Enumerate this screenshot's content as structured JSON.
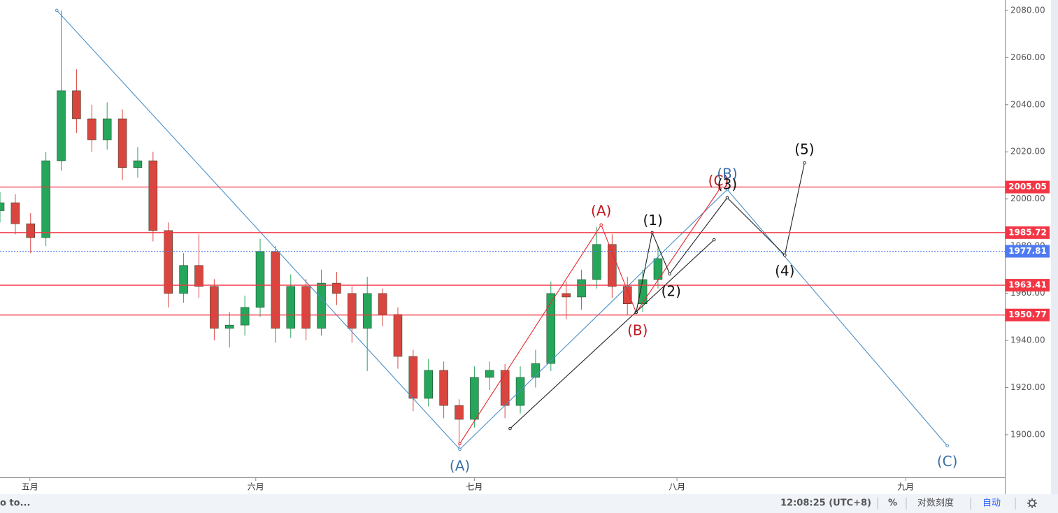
{
  "chart_data": {
    "type": "candlestick",
    "xlim": [
      -4.1,
      133.8
    ],
    "ylim": [
      1881.9,
      2084.4
    ],
    "xticks": [
      {
        "value": 0,
        "label": "五月"
      },
      {
        "value": 31,
        "label": "六月"
      },
      {
        "value": 61,
        "label": "七月"
      },
      {
        "value": 88.8,
        "label": "八月"
      },
      {
        "value": 120.2,
        "label": "九月"
      }
    ],
    "yticks": [
      {
        "value": 1900,
        "label": "1900.00"
      },
      {
        "value": 1920,
        "label": "1920.00"
      },
      {
        "value": 1940,
        "label": "1940.00"
      },
      {
        "value": 1960,
        "label": "1960.00"
      },
      {
        "value": 1980,
        "label": "1980.00"
      },
      {
        "value": 2000,
        "label": "2000.00"
      },
      {
        "value": 2020,
        "label": "2020.00"
      },
      {
        "value": 2040,
        "label": "2040.00"
      },
      {
        "value": 2060,
        "label": "2060.00"
      },
      {
        "value": 2080,
        "label": "2080.00"
      }
    ],
    "up_color": "#26a65b",
    "down_color": "#d9453f",
    "candles": {
      "x": [
        -4.1,
        -2,
        0.1,
        2.2,
        4.3,
        6.4,
        8.5,
        10.6,
        12.7,
        14.8,
        16.9,
        19,
        21.1,
        23.2,
        25.3,
        27.4,
        29.5,
        31.6,
        33.7,
        35.8,
        37.9,
        40,
        42.1,
        44.2,
        46.3,
        48.4,
        50.5,
        52.6,
        54.7,
        56.8,
        58.9,
        61,
        63.1,
        65.2,
        67.3,
        69.4,
        71.5,
        73.6,
        75.7,
        77.8,
        79.9,
        82,
        84.1,
        86.2
      ],
      "open": [
        1995,
        1998.4,
        1989.5,
        1983.6,
        2016.2,
        2045.9,
        2034,
        2025.1,
        2034,
        2013.3,
        2016.2,
        1986.6,
        1959.9,
        1971.8,
        1962.9,
        1945.1,
        1946.5,
        1954,
        1977.7,
        1945.1,
        1962.9,
        1945.1,
        1964.3,
        1959.9,
        1945.1,
        1959.9,
        1951,
        1933.2,
        1915.4,
        1927.3,
        1912.4,
        1906.5,
        1924.3,
        1927.3,
        1912.4,
        1924.3,
        1930.2,
        1959.9,
        1958.4,
        1965.8,
        1980.7,
        1962.9,
        1955.5,
        1965.8
      ],
      "high": [
        2003,
        2002,
        1994,
        2020,
        2080,
        2055,
        2040,
        2041,
        2038,
        2022,
        2020,
        1990,
        1977,
        1985,
        1966,
        1952,
        1959,
        1983,
        1980,
        1968,
        1966,
        1970,
        1969,
        1963,
        1967,
        1962,
        1954,
        1936,
        1932,
        1931,
        1915,
        1929,
        1931,
        1930,
        1929,
        1936,
        1965,
        1965,
        1970,
        1988,
        1985,
        1967,
        1970,
        1980
      ],
      "low": [
        1990,
        1985,
        1977,
        1980,
        2012,
        2028,
        2020,
        2021,
        2008,
        2009,
        1982,
        1954,
        1956,
        1958,
        1940,
        1937,
        1942,
        1950,
        1939,
        1941,
        1940,
        1942,
        1955,
        1939,
        1927,
        1946,
        1928,
        1910,
        1912,
        1907,
        1894,
        1903,
        1919,
        1907,
        1909,
        1920,
        1927,
        1949,
        1953,
        1962,
        1958,
        1951,
        1952,
        1962
      ],
      "close": [
        1998.4,
        1989.5,
        1983.6,
        2016.2,
        2045.9,
        2034,
        2025.1,
        2034,
        2013.3,
        2016.2,
        1986.6,
        1959.9,
        1971.8,
        1962.9,
        1945.1,
        1946.5,
        1954,
        1977.7,
        1945.1,
        1962.9,
        1945.1,
        1964.3,
        1959.9,
        1945.1,
        1959.9,
        1951,
        1933.2,
        1915.4,
        1927.3,
        1912.4,
        1906.5,
        1924.3,
        1927.3,
        1912.4,
        1924.3,
        1930.2,
        1959.9,
        1958.4,
        1965.8,
        1980.7,
        1962.9,
        1955.5,
        1965.8,
        1974.7
      ]
    },
    "levels": [
      {
        "value": 2005.05,
        "color": "#f23645"
      },
      {
        "value": 1985.72,
        "color": "#f23645"
      },
      {
        "value": 1963.41,
        "color": "#f23645"
      },
      {
        "value": 1950.77,
        "color": "#f23645"
      }
    ],
    "current_price": {
      "value": 1977.81,
      "color": "#4e7bf2"
    },
    "waves": [
      {
        "color": "#4a90c8",
        "x": [
          3.7,
          59.0,
          95.7,
          125.9
        ],
        "y": [
          2080,
          1893.8,
          2004.0,
          1895.3
        ]
      },
      {
        "color": "#e8262e",
        "x": [
          59.0,
          78.4,
          83.2,
          94.7
        ],
        "y": [
          1896.2,
          1989.0,
          1951.9,
          2004.4
        ]
      },
      {
        "color": "#222222",
        "x": [
          83.2,
          85.4,
          87.8,
          95.7,
          103.6,
          106.3
        ],
        "y": [
          1951.9,
          1985.7,
          1968.2,
          2000.5,
          1976.2,
          2015.3
        ]
      },
      {
        "color": "#222222",
        "x": [
          65.9,
          93.9
        ],
        "y": [
          1902.6,
          1982.7
        ]
      }
    ],
    "wave_labels": [
      {
        "text": "(A)",
        "color": "#3a6ea5",
        "x": 59.0,
        "y": 1886.3
      },
      {
        "text": "(A)",
        "color": "#c0161d",
        "x": 78.4,
        "y": 1994.6
      },
      {
        "text": "(B)",
        "color": "#c0161d",
        "x": 83.4,
        "y": 1943.9
      },
      {
        "text": "(C)",
        "color": "#c0161d",
        "x": 94.5,
        "y": 2007.3
      },
      {
        "text": "(B)",
        "color": "#3a6ea5",
        "x": 95.7,
        "y": 2010.3
      },
      {
        "text": "(1)",
        "color": "#111111",
        "x": 85.5,
        "y": 1990.5
      },
      {
        "text": "(2)",
        "color": "#111111",
        "x": 88.0,
        "y": 1960.4
      },
      {
        "text": "(3)",
        "color": "#111111",
        "x": 95.7,
        "y": 2005.9
      },
      {
        "text": "(4)",
        "color": "#111111",
        "x": 103.6,
        "y": 1969.1
      },
      {
        "text": "(5)",
        "color": "#111111",
        "x": 106.3,
        "y": 2020.7
      },
      {
        "text": "(C)",
        "color": "#3a6ea5",
        "x": 125.9,
        "y": 1888.3
      }
    ]
  },
  "status_bar": {
    "goto": "o to...",
    "time": "12:08:25 (UTC+8)",
    "percent": "%",
    "log": "对数刻度",
    "auto": "自动"
  }
}
